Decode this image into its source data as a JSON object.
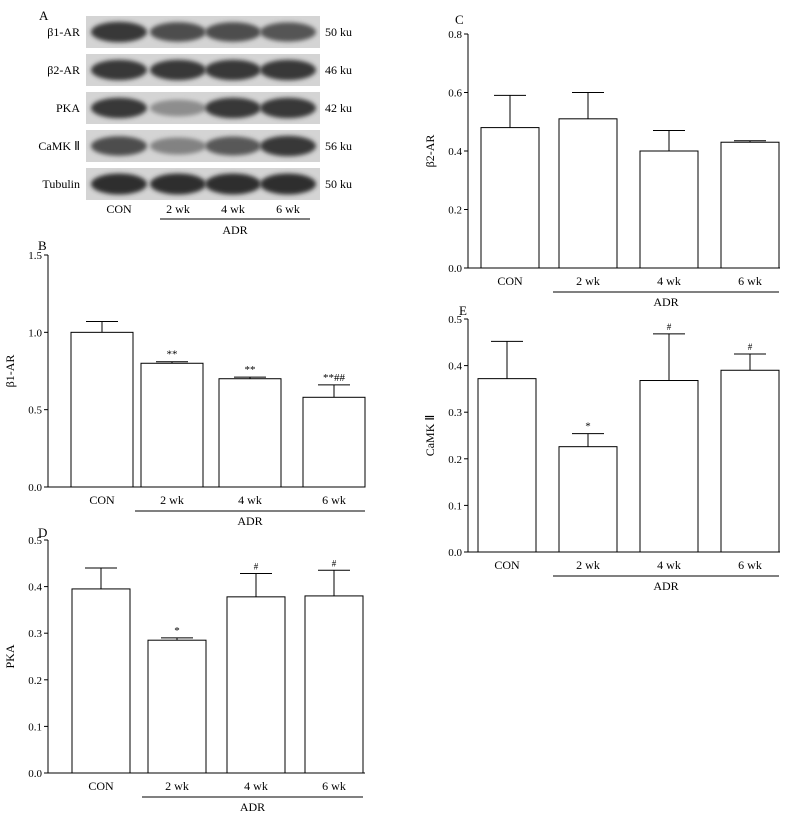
{
  "blot": {
    "panel_label": "A",
    "rows": [
      {
        "name": "β1-AR",
        "size": "50 ku",
        "intensity": [
          0.85,
          0.75,
          0.75,
          0.72
        ]
      },
      {
        "name": "β2-AR",
        "size": "46 ku",
        "intensity": [
          0.85,
          0.85,
          0.85,
          0.85
        ]
      },
      {
        "name": "PKA",
        "size": "42 ku",
        "intensity": [
          0.85,
          0.45,
          0.85,
          0.85
        ]
      },
      {
        "name": "CaMK Ⅱ",
        "size": "56 ku",
        "intensity": [
          0.75,
          0.5,
          0.7,
          0.85
        ]
      },
      {
        "name": "Tubulin",
        "size": "50 ku",
        "intensity": [
          0.9,
          0.9,
          0.9,
          0.9
        ]
      }
    ],
    "lanes": [
      "CON",
      "2 wk",
      "4 wk",
      "6 wk"
    ],
    "group_label": "ADR"
  },
  "chart_data": [
    {
      "panel_label": "B",
      "type": "bar",
      "categories": [
        "CON",
        "2 wk",
        "4 wk",
        "6 wk"
      ],
      "values": [
        1.0,
        0.8,
        0.7,
        0.58
      ],
      "errors": [
        0.07,
        0.01,
        0.01,
        0.08
      ],
      "annotations": [
        "",
        "**",
        "**",
        "**##"
      ],
      "ylabel": "β1-AR",
      "group_label": "ADR",
      "ylim": [
        0,
        1.5
      ],
      "yticks": [
        "0.0",
        "0.5",
        "1.0",
        "1.5"
      ]
    },
    {
      "panel_label": "C",
      "type": "bar",
      "categories": [
        "CON",
        "2 wk",
        "4 wk",
        "6 wk"
      ],
      "values": [
        0.48,
        0.51,
        0.4,
        0.43
      ],
      "errors": [
        0.11,
        0.09,
        0.07,
        0.005
      ],
      "annotations": [
        "",
        "",
        "",
        ""
      ],
      "ylabel": "β2-AR",
      "group_label": "ADR",
      "ylim": [
        0,
        0.8
      ],
      "yticks": [
        "0.0",
        "0.2",
        "0.4",
        "0.6",
        "0.8"
      ]
    },
    {
      "panel_label": "D",
      "type": "bar",
      "categories": [
        "CON",
        "2 wk",
        "4 wk",
        "6 wk"
      ],
      "values": [
        0.395,
        0.285,
        0.378,
        0.38
      ],
      "errors": [
        0.045,
        0.005,
        0.05,
        0.055
      ],
      "annotations": [
        "",
        "*",
        "#",
        "#"
      ],
      "ylabel": "PKA",
      "group_label": "ADR",
      "ylim": [
        0,
        0.5
      ],
      "yticks": [
        "0.0",
        "0.1",
        "0.2",
        "0.3",
        "0.4",
        "0.5"
      ]
    },
    {
      "panel_label": "E",
      "type": "bar",
      "categories": [
        "CON",
        "2 wk",
        "4 wk",
        "6 wk"
      ],
      "values": [
        0.372,
        0.226,
        0.368,
        0.39
      ],
      "errors": [
        0.08,
        0.028,
        0.1,
        0.035
      ],
      "annotations": [
        "",
        "*",
        "#",
        "#"
      ],
      "ylabel": "CaMK Ⅱ",
      "group_label": "ADR",
      "ylim": [
        0,
        0.5
      ],
      "yticks": [
        "0.0",
        "0.1",
        "0.2",
        "0.3",
        "0.4",
        "0.5"
      ]
    }
  ]
}
